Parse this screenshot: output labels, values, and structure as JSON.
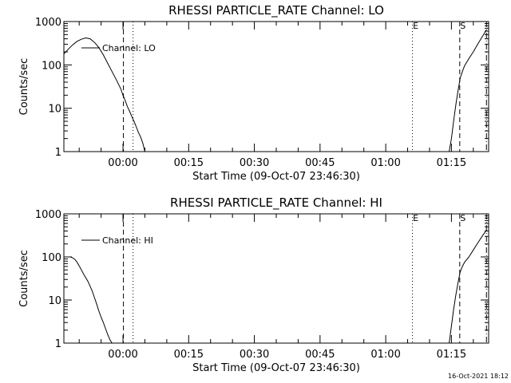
{
  "footer_timestamp": "16-Oct-2021 18:12",
  "chart_data": [
    {
      "type": "line",
      "title": "RHESSI PARTICLE_RATE Channel: LO",
      "xlabel": "Start Time (09-Oct-07 23:46:30)",
      "ylabel": "Counts/sec",
      "y_scale": "log",
      "ylim": [
        1,
        1000
      ],
      "xlim_minutes": [
        -13.5,
        83.5
      ],
      "x_ticks": [
        "00:00",
        "00:15",
        "00:30",
        "00:45",
        "01:00",
        "01:15"
      ],
      "x_tick_minutes": [
        0,
        15,
        30,
        45,
        60,
        75
      ],
      "y_ticks": [
        "1",
        "10",
        "100",
        "1000"
      ],
      "y_tick_values": [
        1,
        10,
        100,
        1000
      ],
      "legend": "Channel: LO",
      "markers": [
        {
          "label": "E",
          "minute": 66.1
        },
        {
          "label": "S",
          "minute": 76.9
        }
      ],
      "vlines": [
        {
          "style": "dashed",
          "minute": 0.1
        },
        {
          "style": "dotted",
          "minute": 2.3
        },
        {
          "style": "dotted",
          "minute": 66.1
        },
        {
          "style": "dashed",
          "minute": 76.9
        },
        {
          "style": "dashdot",
          "minute": 83.0
        }
      ],
      "segments": [
        {
          "minutes": [
            -13.5,
            -12.5,
            -11.5,
            -10.5,
            -9.5,
            -8.5,
            -7.5,
            -6.5,
            -5.5,
            -4.5,
            -3.5,
            -2.5,
            -1.5,
            -0.5,
            0.0,
            0.5,
            1.0,
            1.5,
            2.0,
            2.5,
            3.0,
            3.5,
            4.0,
            4.5,
            5.0
          ],
          "values": [
            180,
            230,
            290,
            350,
            390,
            420,
            400,
            330,
            250,
            170,
            110,
            70,
            45,
            28,
            20,
            15,
            11,
            8.5,
            6.5,
            5.0,
            3.8,
            2.8,
            2.2,
            1.6,
            1.0
          ]
        },
        {
          "minutes": [
            74.5,
            75.0,
            75.5,
            76.0,
            76.5,
            77.0,
            77.5,
            78.0,
            79.0,
            80.0,
            81.0,
            82.0,
            83.0
          ],
          "values": [
            1.0,
            2.0,
            5.0,
            12,
            25,
            50,
            70,
            95,
            140,
            200,
            300,
            440,
            650
          ]
        }
      ]
    },
    {
      "type": "line",
      "title": "RHESSI PARTICLE_RATE Channel: HI",
      "xlabel": "Start Time (09-Oct-07 23:46:30)",
      "ylabel": "Counts/sec",
      "y_scale": "log",
      "ylim": [
        1,
        1000
      ],
      "xlim_minutes": [
        -13.5,
        83.5
      ],
      "x_ticks": [
        "00:00",
        "00:15",
        "00:30",
        "00:45",
        "01:00",
        "01:15"
      ],
      "x_tick_minutes": [
        0,
        15,
        30,
        45,
        60,
        75
      ],
      "y_ticks": [
        "1",
        "10",
        "100",
        "1000"
      ],
      "y_tick_values": [
        1,
        10,
        100,
        1000
      ],
      "legend": "Channel: HI",
      "markers": [
        {
          "label": "E",
          "minute": 66.1
        },
        {
          "label": "S",
          "minute": 76.9
        }
      ],
      "vlines": [
        {
          "style": "dashed",
          "minute": 0.1
        },
        {
          "style": "dotted",
          "minute": 2.3
        },
        {
          "style": "dotted",
          "minute": 66.1
        },
        {
          "style": "dashed",
          "minute": 76.9
        },
        {
          "style": "dashdot",
          "minute": 83.0
        }
      ],
      "segments": [
        {
          "minutes": [
            -13.5,
            -12.5,
            -12.0,
            -11.5,
            -11.0,
            -10.5,
            -10.0,
            -9.0,
            -8.0,
            -7.0,
            -6.0,
            -5.5,
            -5.0,
            -4.5,
            -4.0,
            -3.5,
            -3.0,
            -2.5
          ],
          "values": [
            100,
            100,
            100,
            95,
            88,
            75,
            62,
            40,
            27,
            16,
            8,
            5.5,
            4,
            3,
            2.2,
            1.6,
            1.2,
            1.0
          ]
        },
        {
          "minutes": [
            74.5,
            75.0,
            75.5,
            76.0,
            76.5,
            77.0,
            77.5,
            78.0,
            79.0,
            80.0,
            81.0,
            82.0,
            83.0
          ],
          "values": [
            1.0,
            2.5,
            6,
            13,
            25,
            45,
            60,
            75,
            100,
            145,
            210,
            300,
            420
          ]
        }
      ]
    }
  ]
}
